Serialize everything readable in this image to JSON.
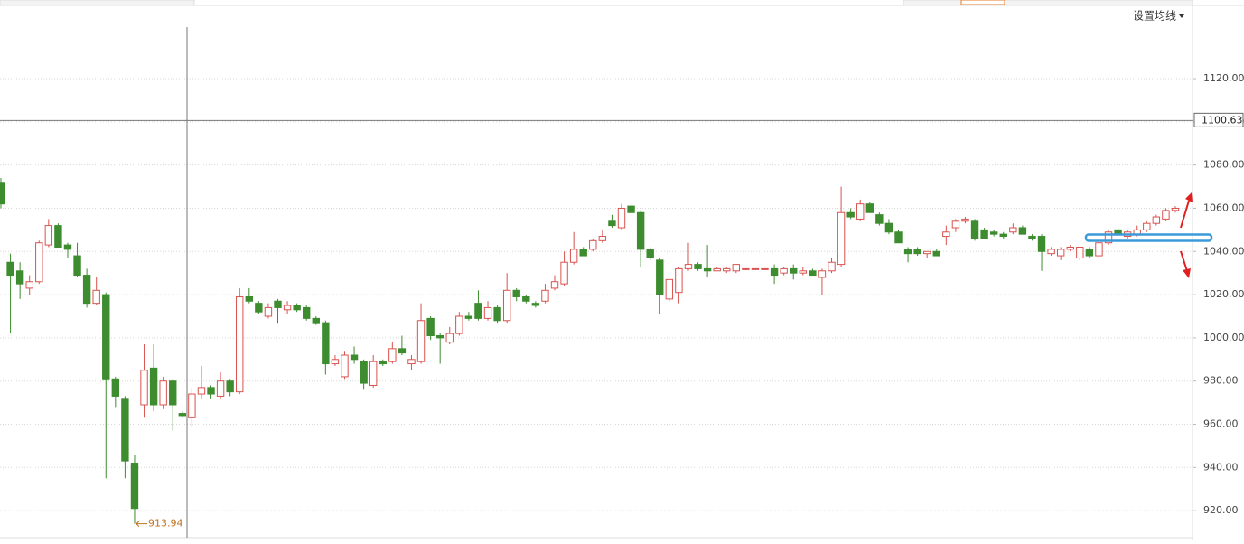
{
  "chart_data": {
    "type": "candlestick",
    "button": "设置均线",
    "ylim": [
      907.5,
      1144.7
    ],
    "yticks": [
      {
        "value": 920,
        "label": "920.00"
      },
      {
        "value": 940,
        "label": "940.00"
      },
      {
        "value": 960,
        "label": "960.00"
      },
      {
        "value": 980,
        "label": "980.00"
      },
      {
        "value": 1000,
        "label": "1000.00"
      },
      {
        "value": 1020,
        "label": "1020.00"
      },
      {
        "value": 1040,
        "label": "1040.00"
      },
      {
        "value": 1060,
        "label": "1060.00"
      },
      {
        "value": 1080,
        "label": "1080.00"
      },
      {
        "value": 1100,
        "label": "1100.00"
      },
      {
        "value": 1120,
        "label": "1120.00"
      }
    ],
    "grid": true,
    "crosshair_value": 1100.63,
    "min_annotation": 913.94,
    "up_color": "#d9534f",
    "down_color": "#3d8c2f",
    "ohlc": [
      [
        1072,
        1074,
        1060,
        1062
      ],
      [
        1035,
        1039,
        1002,
        1029
      ],
      [
        1031,
        1035,
        1018,
        1025
      ],
      [
        1023,
        1029,
        1020,
        1026
      ],
      [
        1026,
        1045,
        1025,
        1044
      ],
      [
        1043,
        1055,
        1042,
        1052
      ],
      [
        1052,
        1053,
        1042,
        1042
      ],
      [
        1043,
        1044,
        1037,
        1041
      ],
      [
        1038,
        1044,
        1028,
        1029
      ],
      [
        1029,
        1032,
        1014,
        1016
      ],
      [
        1016,
        1028,
        1015,
        1022
      ],
      [
        1020,
        1021,
        935,
        981
      ],
      [
        981,
        982,
        968,
        973
      ],
      [
        972,
        973,
        935,
        943
      ],
      [
        942,
        946,
        913.94,
        921
      ],
      [
        969,
        997,
        963,
        985
      ],
      [
        986,
        997,
        966,
        969
      ],
      [
        969,
        982,
        967,
        980
      ],
      [
        980,
        981,
        957,
        969
      ],
      [
        965,
        966,
        963,
        964
      ],
      [
        963,
        977,
        959,
        974
      ],
      [
        974,
        987,
        972,
        977
      ],
      [
        977,
        978,
        972,
        974
      ],
      [
        973,
        984,
        972,
        980
      ],
      [
        980,
        981,
        973,
        975
      ],
      [
        975,
        1023,
        974,
        1019
      ],
      [
        1019,
        1023,
        1016,
        1017
      ],
      [
        1016,
        1017,
        1011,
        1012
      ],
      [
        1010,
        1016,
        1009,
        1014
      ],
      [
        1017,
        1018,
        1007,
        1014
      ],
      [
        1013,
        1017,
        1011,
        1015
      ],
      [
        1015,
        1016,
        1012,
        1013
      ],
      [
        1014,
        1015,
        1008,
        1009
      ],
      [
        1009,
        1010,
        1006,
        1007
      ],
      [
        1007,
        1008,
        983,
        988
      ],
      [
        988,
        992,
        987,
        990
      ],
      [
        982,
        994,
        981,
        992
      ],
      [
        992,
        996,
        988,
        990
      ],
      [
        989,
        990,
        976,
        979
      ],
      [
        978,
        992,
        977,
        989
      ],
      [
        989,
        990,
        987,
        988
      ],
      [
        989,
        998,
        988,
        995
      ],
      [
        995,
        1001,
        992,
        993
      ],
      [
        988,
        992,
        985,
        990
      ],
      [
        989,
        1016,
        988,
        1008
      ],
      [
        1009,
        1010,
        999,
        1001
      ],
      [
        1001,
        1002,
        988,
        1000
      ],
      [
        998,
        1005,
        997,
        1002
      ],
      [
        1002,
        1012,
        1001,
        1010
      ],
      [
        1010,
        1012,
        1008,
        1009
      ],
      [
        1016,
        1022,
        1008,
        1009
      ],
      [
        1009,
        1017,
        1008,
        1014
      ],
      [
        1014,
        1015,
        1007,
        1008
      ],
      [
        1008,
        1030,
        1007,
        1022
      ],
      [
        1022,
        1023,
        1017,
        1019
      ],
      [
        1019,
        1020,
        1016,
        1017
      ],
      [
        1016,
        1017,
        1014,
        1015
      ],
      [
        1017,
        1025,
        1016,
        1022
      ],
      [
        1023,
        1029,
        1022,
        1026
      ],
      [
        1025,
        1040,
        1024,
        1035
      ],
      [
        1035,
        1049,
        1034,
        1041
      ],
      [
        1041,
        1042,
        1038,
        1038
      ],
      [
        1041,
        1046,
        1040,
        1045
      ],
      [
        1045,
        1050,
        1044,
        1047
      ],
      [
        1054,
        1057,
        1051,
        1052
      ],
      [
        1051,
        1062,
        1050,
        1060
      ],
      [
        1061,
        1062,
        1058,
        1058
      ],
      [
        1058,
        1059,
        1033,
        1041
      ],
      [
        1041,
        1042,
        1036,
        1037
      ],
      [
        1036,
        1037,
        1011,
        1020
      ],
      [
        1018,
        1027,
        1017,
        1027
      ],
      [
        1021,
        1033,
        1016,
        1032
      ],
      [
        1032,
        1044,
        1031,
        1034
      ],
      [
        1034,
        1035,
        1031,
        1032
      ],
      [
        1032,
        1043,
        1028,
        1031
      ],
      [
        1031,
        1033,
        1031,
        1032
      ],
      [
        1031,
        1033,
        1030,
        1032
      ],
      [
        1031,
        1034,
        1030,
        1034
      ],
      [
        1032,
        1032,
        1032,
        1032
      ],
      [
        1032,
        1032,
        1032,
        1032
      ],
      [
        1032,
        1032,
        1032,
        1032
      ],
      [
        1032,
        1034,
        1025,
        1029
      ],
      [
        1030,
        1033,
        1029,
        1032
      ],
      [
        1032,
        1034,
        1027,
        1030
      ],
      [
        1030,
        1033,
        1029,
        1031
      ],
      [
        1031,
        1032,
        1029,
        1029
      ],
      [
        1028,
        1032,
        1020,
        1031
      ],
      [
        1031,
        1037,
        1030,
        1035
      ],
      [
        1034,
        1070,
        1033,
        1058
      ],
      [
        1058,
        1060,
        1055,
        1056
      ],
      [
        1055,
        1064,
        1054,
        1062
      ],
      [
        1062,
        1063,
        1058,
        1058
      ],
      [
        1057,
        1058,
        1052,
        1053
      ],
      [
        1053,
        1055,
        1048,
        1049
      ],
      [
        1049,
        1050,
        1044,
        1044
      ],
      [
        1041,
        1042,
        1035,
        1039
      ],
      [
        1041,
        1042,
        1038,
        1039
      ],
      [
        1039,
        1040,
        1037,
        1040
      ],
      [
        1040,
        1041,
        1038,
        1038
      ],
      [
        1047,
        1052,
        1043,
        1049
      ],
      [
        1051,
        1055,
        1049,
        1054
      ],
      [
        1054,
        1056,
        1053,
        1055
      ],
      [
        1054,
        1055,
        1045,
        1046
      ],
      [
        1050,
        1051,
        1046,
        1046
      ],
      [
        1049,
        1050,
        1047,
        1048
      ],
      [
        1048,
        1049,
        1046,
        1047
      ],
      [
        1049,
        1053,
        1048,
        1051
      ],
      [
        1051,
        1052,
        1048,
        1048
      ],
      [
        1047,
        1048,
        1045,
        1046
      ],
      [
        1047,
        1048,
        1031,
        1040
      ],
      [
        1039,
        1042,
        1038,
        1041
      ],
      [
        1038,
        1042,
        1036,
        1041
      ],
      [
        1041,
        1043,
        1040,
        1042
      ],
      [
        1037,
        1042,
        1036,
        1042
      ],
      [
        1041,
        1042,
        1037,
        1038
      ],
      [
        1038,
        1046,
        1037,
        1044
      ],
      [
        1044,
        1050,
        1043,
        1049
      ],
      [
        1050,
        1051,
        1047,
        1048
      ],
      [
        1047,
        1050,
        1046,
        1049
      ],
      [
        1048,
        1052,
        1047,
        1050
      ],
      [
        1050,
        1054,
        1049,
        1053
      ],
      [
        1053,
        1057,
        1052,
        1056
      ],
      [
        1055,
        1060,
        1054,
        1059
      ],
      [
        1059,
        1061,
        1058,
        1060
      ]
    ]
  }
}
